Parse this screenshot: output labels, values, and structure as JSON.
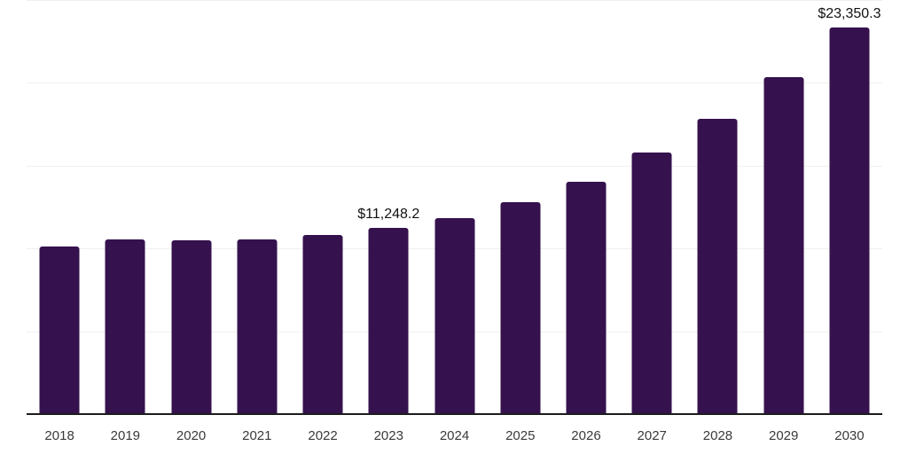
{
  "chart_data": {
    "type": "bar",
    "title": "",
    "xlabel": "",
    "ylabel": "",
    "categories": [
      "2018",
      "2019",
      "2020",
      "2021",
      "2022",
      "2023",
      "2024",
      "2025",
      "2026",
      "2027",
      "2028",
      "2029",
      "2030"
    ],
    "values": [
      10100,
      10560,
      10510,
      10550,
      10830,
      11248.2,
      11850,
      12790,
      14020,
      15780,
      17830,
      20330,
      23350.3
    ],
    "value_labels": [
      {
        "index": 5,
        "text": "$11,248.2"
      },
      {
        "index": 12,
        "text": "$23,350.3"
      }
    ],
    "ylim": [
      0,
      25000
    ],
    "gridline_values": [
      5000,
      10000,
      15000,
      20000,
      25000
    ],
    "grid": "horizontal",
    "legend_position": "none"
  },
  "style": {
    "bar_color": "#35124E",
    "axis_line_color": "#1c1c1c",
    "gridline_color": "#f0f0f0",
    "tick_label_color": "#3a3a3a",
    "data_label_color": "#111111",
    "background_color": "#ffffff"
  }
}
